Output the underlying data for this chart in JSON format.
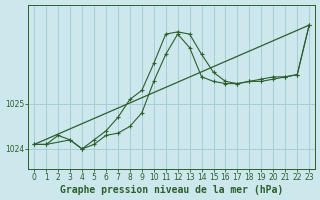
{
  "background_color": "#cce8ed",
  "grid_color": "#a8cdd4",
  "line_color": "#2d5e2d",
  "title": "Graphe pression niveau de la mer (hPa)",
  "xlim": [
    -0.5,
    23.5
  ],
  "ylim": [
    1023.55,
    1027.2
  ],
  "yticks": [
    1024,
    1025
  ],
  "xticks": [
    0,
    1,
    2,
    3,
    4,
    5,
    6,
    7,
    8,
    9,
    10,
    11,
    12,
    13,
    14,
    15,
    16,
    17,
    18,
    19,
    20,
    21,
    22,
    23
  ],
  "series1_x": [
    0,
    1,
    2,
    3,
    4,
    5,
    6,
    7,
    8,
    9,
    10,
    11,
    12,
    13,
    14,
    15,
    16,
    17,
    18,
    19,
    20,
    21,
    22,
    23
  ],
  "series1_y": [
    1024.1,
    1024.1,
    1024.3,
    1024.2,
    1024.0,
    1024.2,
    1024.4,
    1024.7,
    1025.1,
    1025.3,
    1025.9,
    1026.55,
    1026.6,
    1026.55,
    1026.1,
    1025.7,
    1025.5,
    1025.45,
    1025.5,
    1025.55,
    1025.6,
    1025.6,
    1025.65,
    1026.75
  ],
  "series2_x": [
    0,
    1,
    3,
    4,
    5,
    6,
    7,
    8,
    9,
    10,
    11,
    12,
    13,
    14,
    15,
    16,
    17,
    18,
    19,
    20,
    21,
    22,
    23
  ],
  "series2_y": [
    1024.1,
    1024.1,
    1024.2,
    1024.0,
    1024.1,
    1024.3,
    1024.35,
    1024.5,
    1024.8,
    1025.5,
    1026.1,
    1026.55,
    1026.25,
    1025.6,
    1025.5,
    1025.45,
    1025.45,
    1025.5,
    1025.5,
    1025.55,
    1025.6,
    1025.65,
    1026.75
  ],
  "series3_x": [
    0,
    23
  ],
  "series3_y": [
    1024.1,
    1026.75
  ],
  "title_fontsize": 7,
  "tick_fontsize": 5.5
}
